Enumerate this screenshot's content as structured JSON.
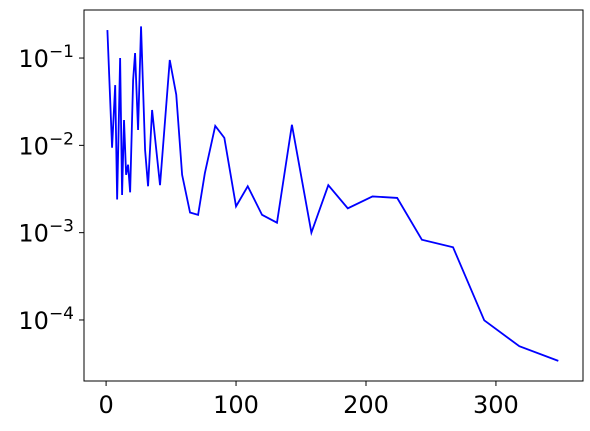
{
  "chart_data": {
    "type": "line",
    "log_y": true,
    "color": "#0000ff",
    "x": [
      1,
      4.6,
      7,
      8.5,
      10.8,
      12.3,
      13.8,
      15.4,
      16.9,
      18.5,
      20.8,
      22.3,
      24.6,
      26.9,
      30,
      32.3,
      35.4,
      41.5,
      49,
      54,
      58.5,
      64.6,
      70.8,
      76,
      84,
      91,
      100,
      109,
      120,
      131.5,
      143,
      158,
      171,
      186,
      205,
      224,
      243,
      267,
      291,
      318,
      348
    ],
    "values": [
      0.209,
      0.0094,
      0.049,
      0.0024,
      0.1,
      0.0027,
      0.0195,
      0.0046,
      0.006,
      0.0029,
      0.056,
      0.114,
      0.015,
      0.23,
      0.0089,
      0.0034,
      0.0254,
      0.0035,
      0.095,
      0.038,
      0.0046,
      0.0017,
      0.0016,
      0.0048,
      0.0167,
      0.0122,
      0.002,
      0.0034,
      0.0016,
      0.0013,
      0.0172,
      0.001,
      0.0035,
      0.0019,
      0.0026,
      0.0025,
      0.00083,
      0.00068,
      9.9e-05,
      5e-05,
      3.4e-05
    ],
    "xlim": [
      -17,
      367
    ],
    "xticks": [
      0,
      100,
      200,
      300
    ],
    "ylim": [
      2e-05,
      0.355
    ],
    "yticks": [
      {
        "value": 0.0001,
        "label": "10^−4"
      },
      {
        "value": 0.001,
        "label": "10^−3"
      },
      {
        "value": 0.01,
        "label": "10^−2"
      },
      {
        "value": 0.1,
        "label": "10^−1"
      }
    ]
  }
}
